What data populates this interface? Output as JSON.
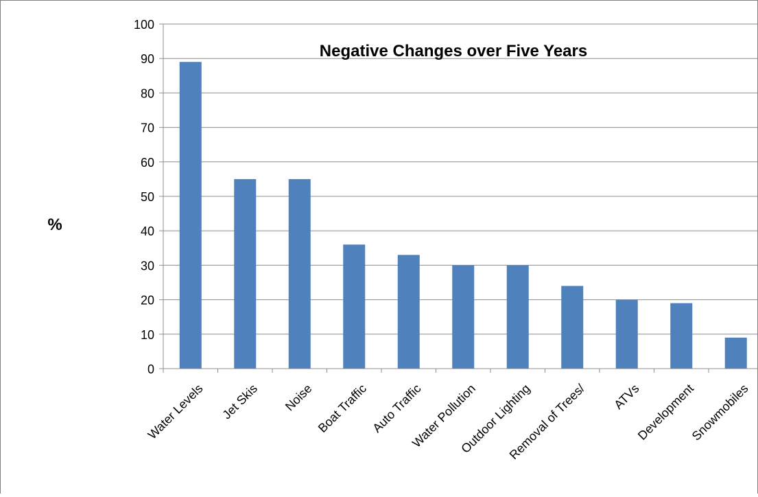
{
  "chart_data": {
    "type": "bar",
    "title": "Negative Changes over Five Years",
    "ylabel": "%",
    "xlabel": "",
    "categories": [
      "Water Levels",
      "Jet Skis",
      "Noise",
      "Boat Traffic",
      "Auto Traffic",
      "Water Pollution",
      "Outdoor Lighting",
      "Removal of Trees/",
      "ATVs",
      "Development",
      "Snowmobiles"
    ],
    "values": [
      89,
      55,
      55,
      36,
      33,
      30,
      30,
      24,
      20,
      19,
      9
    ],
    "ylim": [
      0,
      100
    ],
    "yticks": [
      0,
      10,
      20,
      30,
      40,
      50,
      60,
      70,
      80,
      90,
      100
    ],
    "grid": true,
    "legend": "none",
    "bar_color": "#4f81bd",
    "grid_color": "#8c8c8c",
    "axis_color": "#8c8c8c"
  }
}
